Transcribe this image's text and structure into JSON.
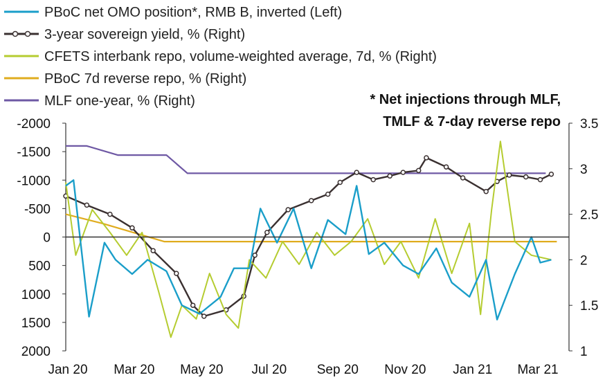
{
  "chart_data": {
    "type": "line",
    "legend": [
      {
        "label": "PBoC net OMO position*, RMB B, inverted (Left)",
        "color": "#1a9ec9",
        "style": "line"
      },
      {
        "label": "3-year sovereign yield, % (Right)",
        "color": "#3a3030",
        "style": "marker-line"
      },
      {
        "label": "CFETS interbank repo, volume-weighted average, 7d, % (Right)",
        "color": "#b5cc30",
        "style": "line"
      },
      {
        "label": "PBoC 7d reverse repo, % (Right)",
        "color": "#e0ac1e",
        "style": "line"
      },
      {
        "label": "MLF one-year, % (Right)",
        "color": "#6e58a4",
        "style": "line"
      }
    ],
    "note_line1": "* Net injections through MLF,",
    "note_line2": "TMLF & 7-day reverse repo",
    "legend_placement": "top-left",
    "grid": false,
    "x_axis": {
      "range": [
        "2020-01-01",
        "2021-03-31"
      ],
      "ticks": [
        "Jan 20",
        "Mar 20",
        "May 20",
        "Jul 20",
        "Sep 20",
        "Nov 20",
        "Jan 21",
        "Mar 21"
      ]
    },
    "y_left": {
      "range": [
        2000,
        -2000
      ],
      "inverted": true,
      "ticks": [
        "-2000",
        "-1500",
        "-1000",
        "-500",
        "0",
        "500",
        "1000",
        "1500",
        "2000"
      ]
    },
    "y_right": {
      "range": [
        1,
        3.5
      ],
      "ticks": [
        "3.5",
        "3",
        "2.5",
        "2",
        "1.5",
        "1"
      ]
    },
    "series": [
      {
        "name": "MLF one-year, % (Right)",
        "axis": "right",
        "points": [
          [
            "2020-01-01",
            3.25
          ],
          [
            "2020-01-20",
            3.25
          ],
          [
            "2020-02-17",
            3.15
          ],
          [
            "2020-04-01",
            3.15
          ],
          [
            "2020-04-20",
            2.95
          ],
          [
            "2021-03-10",
            2.95
          ]
        ]
      },
      {
        "name": "PBoC 7d reverse repo, % (Right)",
        "axis": "right",
        "points": [
          [
            "2020-01-01",
            2.5
          ],
          [
            "2020-02-03",
            2.4
          ],
          [
            "2020-03-30",
            2.2
          ],
          [
            "2021-03-20",
            2.2
          ]
        ]
      },
      {
        "name": "3-year sovereign yield, % (Right)",
        "axis": "right",
        "points": [
          [
            "2020-01-01",
            2.7
          ],
          [
            "2020-01-20",
            2.6
          ],
          [
            "2020-02-10",
            2.5
          ],
          [
            "2020-03-01",
            2.35
          ],
          [
            "2020-03-20",
            2.1
          ],
          [
            "2020-04-10",
            1.85
          ],
          [
            "2020-04-25",
            1.5
          ],
          [
            "2020-05-05",
            1.38
          ],
          [
            "2020-05-25",
            1.45
          ],
          [
            "2020-06-10",
            1.6
          ],
          [
            "2020-06-20",
            2.05
          ],
          [
            "2020-07-01",
            2.3
          ],
          [
            "2020-07-20",
            2.55
          ],
          [
            "2020-08-10",
            2.65
          ],
          [
            "2020-08-25",
            2.72
          ],
          [
            "2020-09-05",
            2.85
          ],
          [
            "2020-09-20",
            2.96
          ],
          [
            "2020-10-05",
            2.88
          ],
          [
            "2020-10-20",
            2.92
          ],
          [
            "2020-11-01",
            2.96
          ],
          [
            "2020-11-15",
            2.98
          ],
          [
            "2020-11-22",
            3.12
          ],
          [
            "2020-12-10",
            3.02
          ],
          [
            "2020-12-25",
            2.9
          ],
          [
            "2021-01-15",
            2.75
          ],
          [
            "2021-01-25",
            2.86
          ],
          [
            "2021-02-05",
            2.93
          ],
          [
            "2021-02-20",
            2.91
          ],
          [
            "2021-03-05",
            2.88
          ],
          [
            "2021-03-15",
            2.94
          ]
        ]
      },
      {
        "name": "CFETS interbank repo, volume-weighted average, 7d, % (Right)",
        "axis": "right",
        "points": [
          [
            "2020-01-01",
            2.85
          ],
          [
            "2020-01-10",
            2.05
          ],
          [
            "2020-01-25",
            2.55
          ],
          [
            "2020-02-10",
            2.3
          ],
          [
            "2020-02-25",
            2.05
          ],
          [
            "2020-03-10",
            2.3
          ],
          [
            "2020-03-25",
            1.65
          ],
          [
            "2020-04-05",
            1.15
          ],
          [
            "2020-04-15",
            1.5
          ],
          [
            "2020-04-28",
            1.35
          ],
          [
            "2020-05-10",
            1.85
          ],
          [
            "2020-05-25",
            1.4
          ],
          [
            "2020-06-05",
            1.25
          ],
          [
            "2020-06-15",
            2.0
          ],
          [
            "2020-06-30",
            1.8
          ],
          [
            "2020-07-15",
            2.2
          ],
          [
            "2020-07-30",
            1.95
          ],
          [
            "2020-08-15",
            2.3
          ],
          [
            "2020-08-31",
            2.05
          ],
          [
            "2020-09-15",
            2.2
          ],
          [
            "2020-09-30",
            2.45
          ],
          [
            "2020-10-15",
            1.95
          ],
          [
            "2020-10-30",
            2.2
          ],
          [
            "2020-11-15",
            1.8
          ],
          [
            "2020-11-30",
            2.45
          ],
          [
            "2020-12-15",
            1.85
          ],
          [
            "2020-12-31",
            2.4
          ],
          [
            "2021-01-10",
            1.4
          ],
          [
            "2021-01-20",
            2.55
          ],
          [
            "2021-01-28",
            3.3
          ],
          [
            "2021-02-10",
            2.2
          ],
          [
            "2021-02-25",
            2.05
          ],
          [
            "2021-03-15",
            2.0
          ]
        ]
      },
      {
        "name": "PBoC net OMO position*, RMB B, inverted (Left)",
        "axis": "left",
        "points": [
          [
            "2020-01-01",
            -900
          ],
          [
            "2020-01-08",
            -1000
          ],
          [
            "2020-01-15",
            200
          ],
          [
            "2020-01-22",
            1400
          ],
          [
            "2020-02-05",
            100
          ],
          [
            "2020-02-15",
            400
          ],
          [
            "2020-03-01",
            650
          ],
          [
            "2020-03-15",
            400
          ],
          [
            "2020-04-01",
            600
          ],
          [
            "2020-04-15",
            1200
          ],
          [
            "2020-05-01",
            1350
          ],
          [
            "2020-05-20",
            1050
          ],
          [
            "2020-06-01",
            550
          ],
          [
            "2020-06-15",
            550
          ],
          [
            "2020-06-25",
            -500
          ],
          [
            "2020-07-10",
            100
          ],
          [
            "2020-07-25",
            -500
          ],
          [
            "2020-08-10",
            550
          ],
          [
            "2020-08-25",
            -300
          ],
          [
            "2020-09-10",
            -50
          ],
          [
            "2020-09-20",
            -900
          ],
          [
            "2020-10-01",
            300
          ],
          [
            "2020-10-15",
            100
          ],
          [
            "2020-11-01",
            500
          ],
          [
            "2020-11-15",
            650
          ],
          [
            "2020-12-01",
            200
          ],
          [
            "2020-12-15",
            800
          ],
          [
            "2020-12-31",
            1050
          ],
          [
            "2021-01-15",
            400
          ],
          [
            "2021-01-25",
            1450
          ],
          [
            "2021-02-10",
            650
          ],
          [
            "2021-02-25",
            0
          ],
          [
            "2021-03-05",
            450
          ],
          [
            "2021-03-15",
            400
          ]
        ]
      }
    ]
  }
}
